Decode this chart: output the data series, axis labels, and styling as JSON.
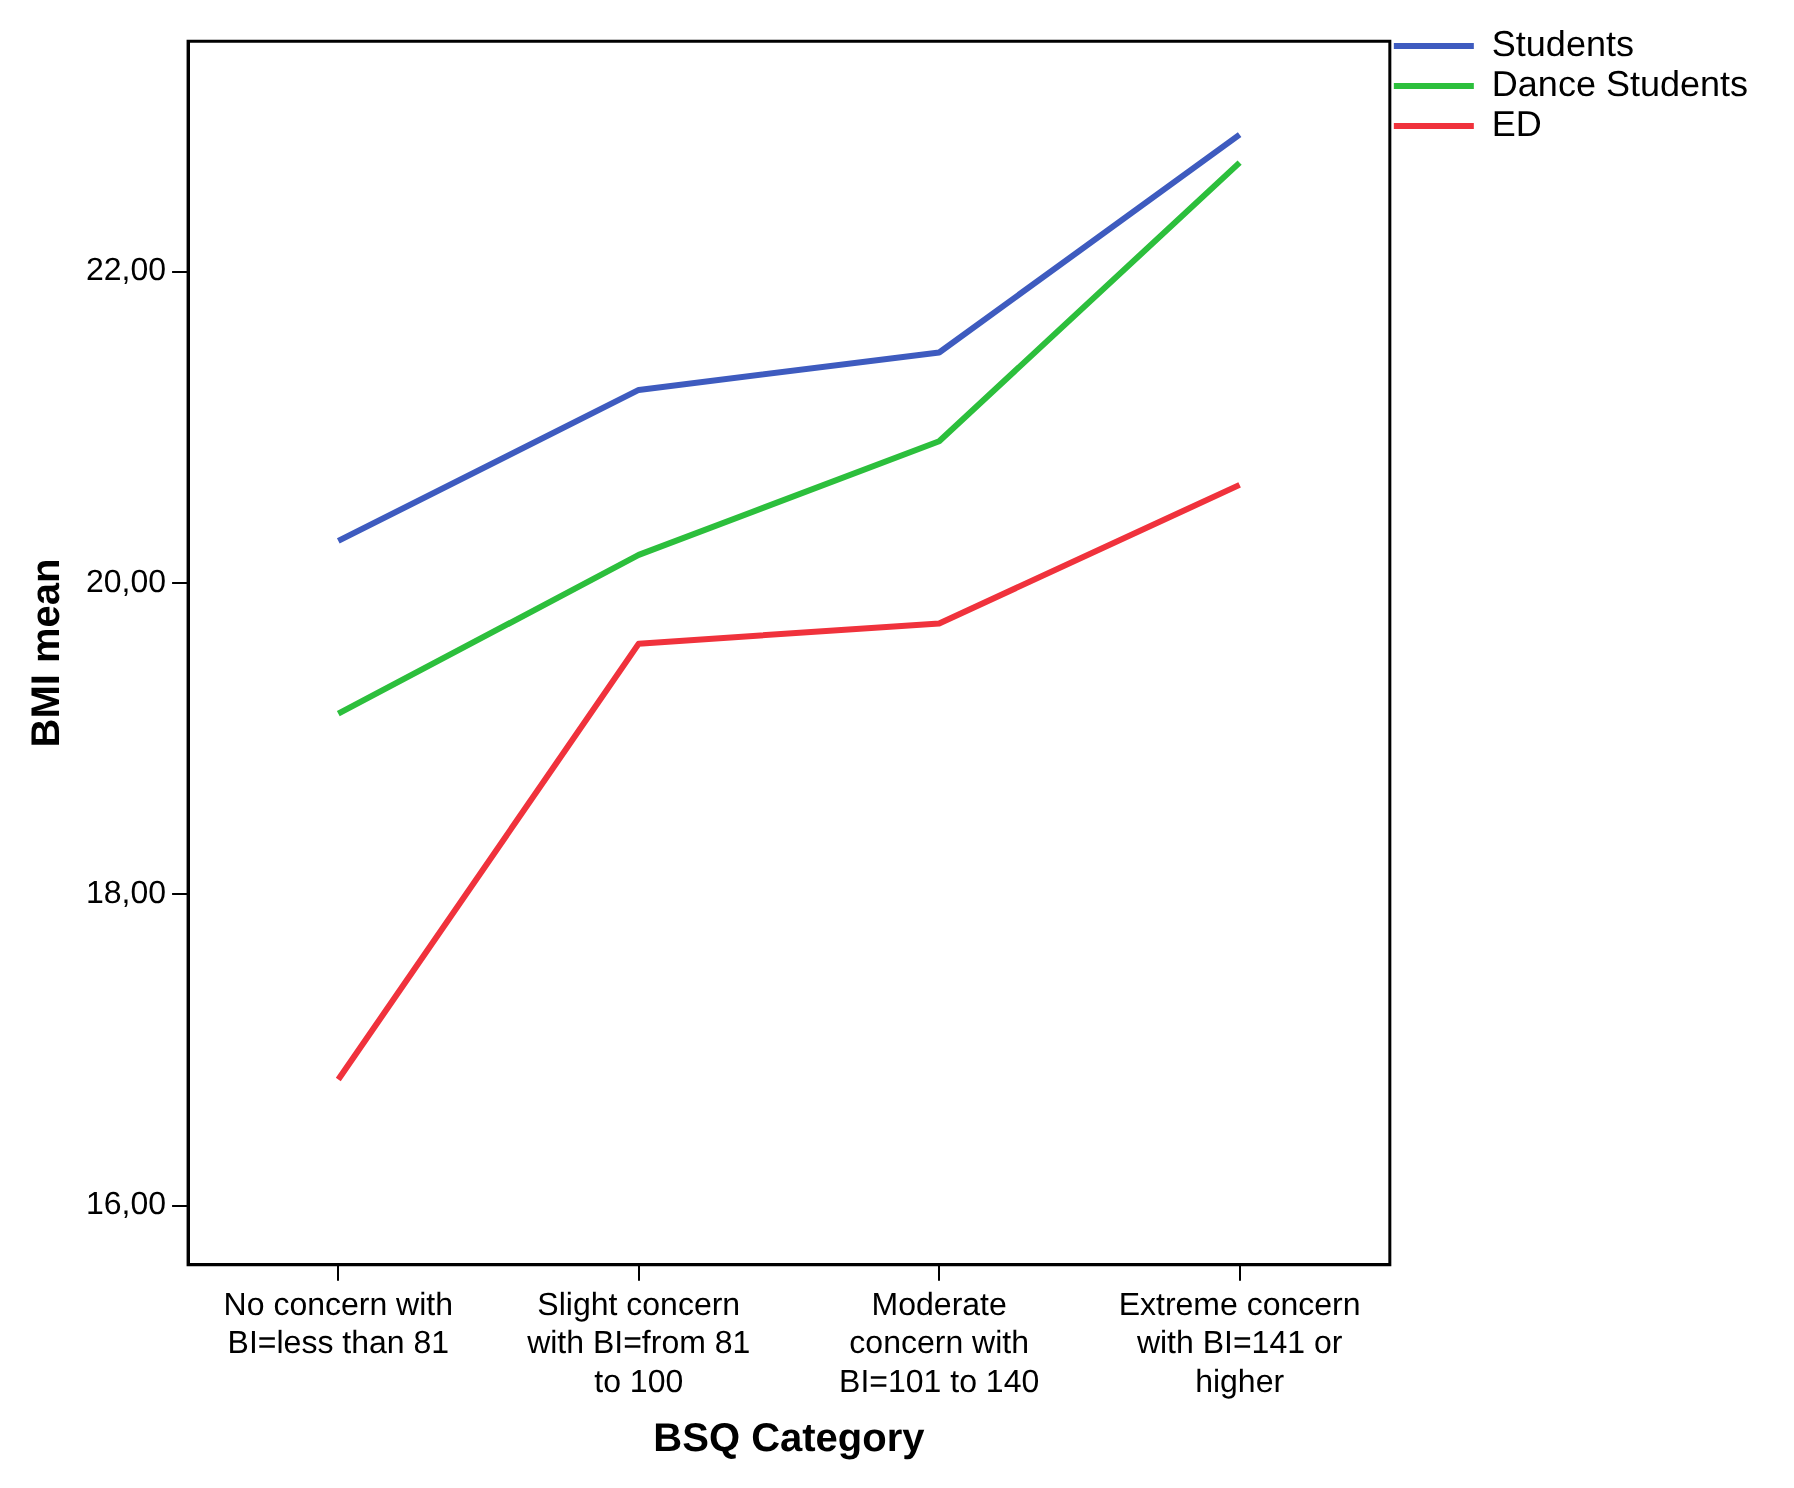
{
  "chart_data": {
    "type": "line",
    "xlabel": "BSQ Category",
    "ylabel": "BMI mean",
    "categories": [
      "No concern with BI=less than 81",
      "Slight concern with BI=from 81 to 100",
      "Moderate concern with BI=101 to 140",
      "Extreme concern with BI=141 or higher"
    ],
    "series": [
      {
        "name": "Students",
        "color": "#3e5bbf",
        "values": [
          20.27,
          21.24,
          21.48,
          22.88
        ]
      },
      {
        "name": "Dance Students",
        "color": "#2cbf3c",
        "values": [
          19.16,
          20.18,
          20.91,
          22.7
        ]
      },
      {
        "name": "ED",
        "color": "#f0323c",
        "values": [
          16.81,
          19.61,
          19.74,
          20.63
        ]
      }
    ],
    "ylim": [
      15.62,
      23.48
    ],
    "yticks": [
      {
        "value": 16,
        "label": "16,00"
      },
      {
        "value": 18,
        "label": "18,00"
      },
      {
        "value": 20,
        "label": "20,00"
      },
      {
        "value": 22,
        "label": "22,00"
      }
    ],
    "grid": false,
    "legend": "top right",
    "marker": "none",
    "line_style": "solid"
  }
}
